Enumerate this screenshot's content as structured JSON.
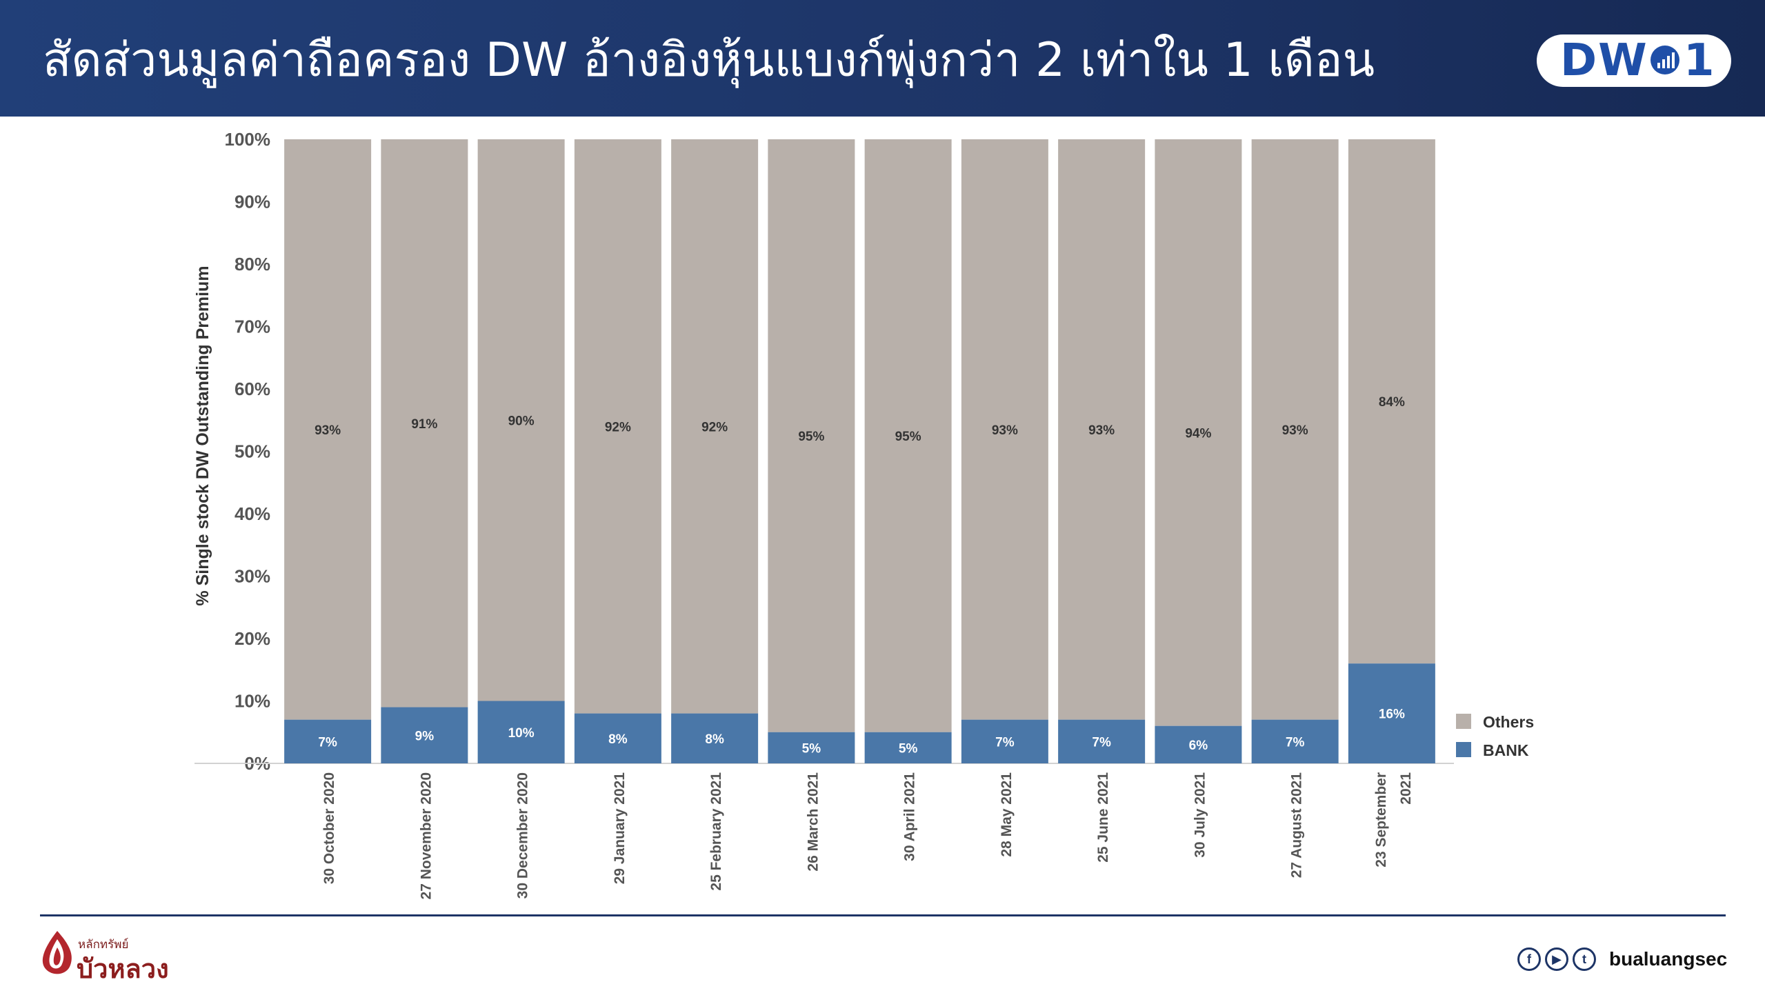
{
  "header": {
    "title": "สัดส่วนมูลค่าถือครอง DW อ้างอิงหุ้นแบงก์พุ่งกว่า 2 เท่าใน 1 เดือน",
    "badge_left": "DW",
    "badge_right": "1"
  },
  "chart_data": {
    "type": "bar",
    "stacked": true,
    "percent": true,
    "title": "",
    "xlabel": "",
    "ylabel": "% Single stock DW Outstanding Premium",
    "ylim": [
      0,
      100
    ],
    "yticks": [
      "0%",
      "10%",
      "20%",
      "30%",
      "40%",
      "50%",
      "60%",
      "70%",
      "80%",
      "90%",
      "100%"
    ],
    "categories": [
      [
        "30 October 2020"
      ],
      [
        "27 November 2020"
      ],
      [
        "30 December 2020"
      ],
      [
        "29 January 2021"
      ],
      [
        "25 February 2021"
      ],
      [
        "26 March 2021"
      ],
      [
        "30 April 2021"
      ],
      [
        "28 May 2021"
      ],
      [
        "25 June 2021"
      ],
      [
        "30 July 2021"
      ],
      [
        "27 August 2021"
      ],
      [
        "23 September",
        "2021"
      ]
    ],
    "series": [
      {
        "name": "BANK",
        "color": "#4a77a8",
        "values": [
          7,
          9,
          10,
          8,
          8,
          5,
          5,
          7,
          7,
          6,
          7,
          16
        ],
        "labels": [
          "7%",
          "9%",
          "10%",
          "8%",
          "8%",
          "5%",
          "5%",
          "7%",
          "7%",
          "6%",
          "7%",
          "16%"
        ]
      },
      {
        "name": "Others",
        "color": "#b8b0aa",
        "values": [
          93,
          91,
          90,
          92,
          92,
          95,
          95,
          93,
          93,
          94,
          93,
          84
        ],
        "labels": [
          "93%",
          "91%",
          "90%",
          "92%",
          "92%",
          "95%",
          "95%",
          "93%",
          "93%",
          "94%",
          "93%",
          "84%"
        ]
      }
    ],
    "legend": {
      "position": "right",
      "items": [
        "Others",
        "BANK"
      ]
    },
    "grid": false
  },
  "footer": {
    "brand_small": "หลักทรัพย์",
    "brand_big": "บัวหลวง",
    "social_handle": "bualuangsec",
    "icons": [
      "facebook-icon",
      "youtube-icon",
      "twitter-icon"
    ]
  }
}
